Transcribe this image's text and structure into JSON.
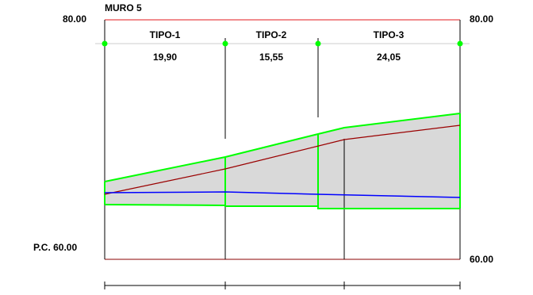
{
  "title": "MURO 5",
  "left_top_label": "80.00",
  "right_top_label": "80.00",
  "left_bottom_label": "P.C. 60.00",
  "right_bottom_label": "60.00",
  "segments": [
    {
      "name": "TIPO-1",
      "length": "19,90"
    },
    {
      "name": "TIPO-2",
      "length": "15,55"
    },
    {
      "name": "TIPO-3",
      "length": "24,05"
    }
  ],
  "colors": {
    "top_line": "#e31a1c",
    "bottom_line": "#8b0000",
    "guide_line": "#cccccc",
    "outline": "#00ff00",
    "fill": "#d9d9d9",
    "terrain": "#9a0000",
    "base_line": "#0000ff",
    "lines": "#000000"
  }
}
